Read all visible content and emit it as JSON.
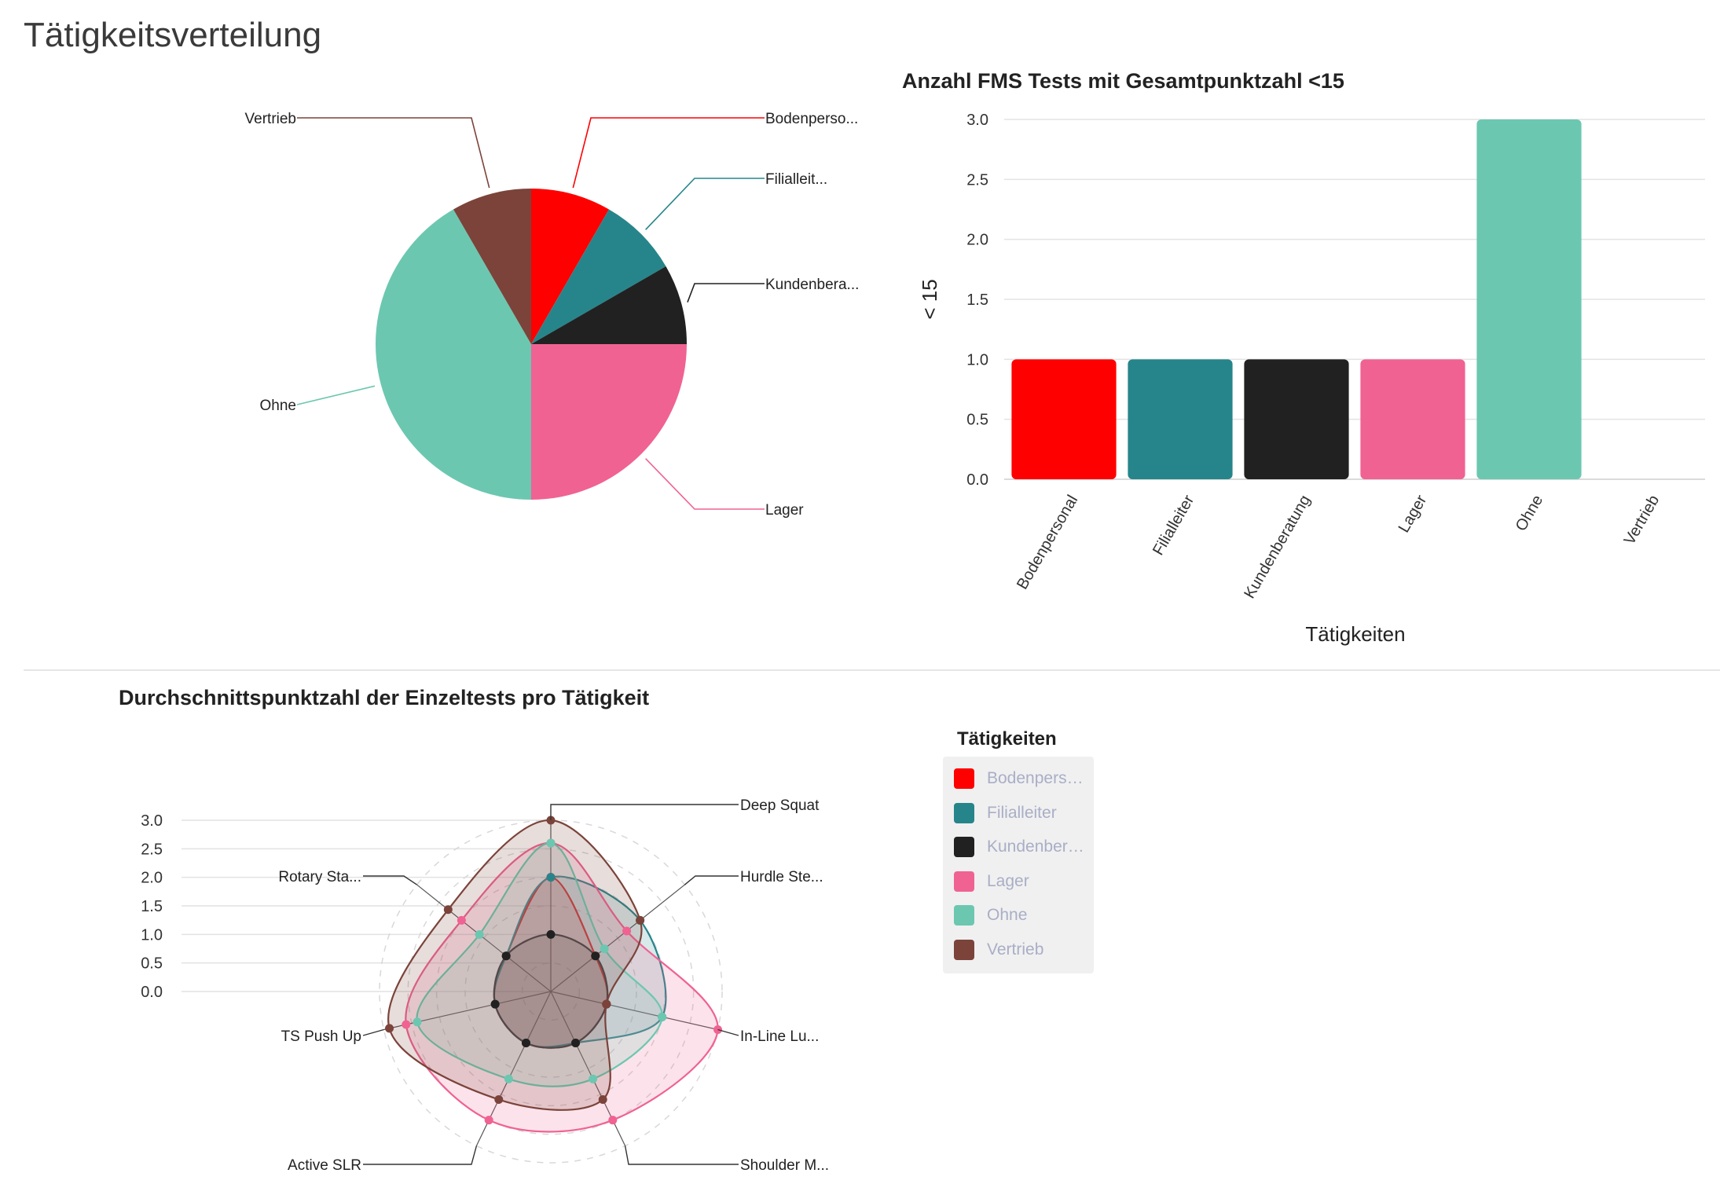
{
  "page": {
    "title": "Tätigkeitsverteilung"
  },
  "colors": {
    "Bodenpersonal": "#ff0000",
    "Filialleiter": "#26858b",
    "Kundenberatung": "#212121",
    "Lager": "#f06292",
    "Ohne": "#6cc7b0",
    "Vertrieb": "#7b433a"
  },
  "chart_data": [
    {
      "type": "pie",
      "title": "",
      "slices": [
        {
          "name": "Bodenpersonal",
          "label": "Bodenperso...",
          "value": 1
        },
        {
          "name": "Filialleiter",
          "label": "Filialleit...",
          "value": 1
        },
        {
          "name": "Kundenberatung",
          "label": "Kundenbera...",
          "value": 1
        },
        {
          "name": "Lager",
          "label": "Lager",
          "value": 3
        },
        {
          "name": "Ohne",
          "label": "Ohne",
          "value": 5
        },
        {
          "name": "Vertrieb",
          "label": "Vertrieb",
          "value": 1
        }
      ]
    },
    {
      "type": "bar",
      "title": "Anzahl FMS Tests mit Gesamtpunktzahl <15",
      "xlabel": "Tätigkeiten",
      "ylabel": "< 15",
      "categories": [
        "Bodenpersonal",
        "Filialleiter",
        "Kundenberatung",
        "Lager",
        "Ohne",
        "Vertrieb"
      ],
      "values": [
        1,
        1,
        1,
        1,
        3,
        0
      ],
      "ylim": [
        0,
        3
      ],
      "yticks": [
        "0.0",
        "0.5",
        "1.0",
        "1.5",
        "2.0",
        "2.5",
        "3.0"
      ],
      "grid": true
    },
    {
      "type": "radar",
      "title": "Durchschnittspunktzahl der Einzeltests pro Tätigkeit",
      "axes": [
        "Deep Squat",
        "Hurdle Ste...",
        "In-Line Lu...",
        "Shoulder M...",
        "Active SLR",
        "TS Push Up",
        "Rotary Sta..."
      ],
      "scale_ticks": [
        "0.0",
        "0.5",
        "1.0",
        "1.5",
        "2.0",
        "2.5",
        "3.0"
      ],
      "rlim": [
        0,
        3
      ],
      "legend_title": "Tätigkeiten",
      "legend_labels": [
        "Bodenperso...",
        "Filialleiter",
        "Kundenbera...",
        "Lager",
        "Ohne",
        "Vertrieb"
      ],
      "series": [
        {
          "name": "Bodenpersonal",
          "values": [
            2,
            1,
            1,
            1,
            1,
            1,
            1
          ]
        },
        {
          "name": "Filialleiter",
          "values": [
            2,
            2,
            2,
            1,
            1,
            1,
            1
          ]
        },
        {
          "name": "Kundenberatung",
          "values": [
            1,
            1,
            1,
            1,
            1,
            1,
            1
          ]
        },
        {
          "name": "Lager",
          "values": [
            2.6,
            1.7,
            3,
            2.5,
            2.5,
            2.6,
            2
          ]
        },
        {
          "name": "Ohne",
          "values": [
            2.6,
            1.2,
            2,
            1.7,
            1.7,
            2.4,
            1.6
          ]
        },
        {
          "name": "Vertrieb",
          "values": [
            3,
            2,
            1,
            2.1,
            2.1,
            2.9,
            2.3
          ]
        }
      ]
    }
  ]
}
